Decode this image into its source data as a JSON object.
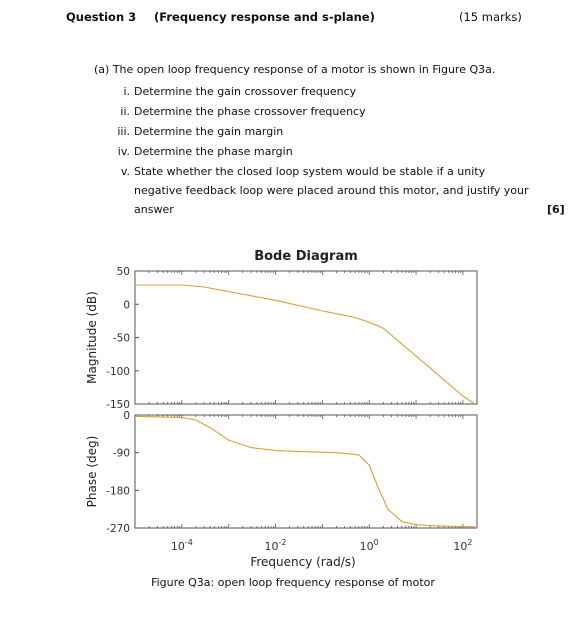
{
  "header": {
    "question": "Question 3",
    "topic": "(Frequency response and s-plane)",
    "marks": "(15 marks)"
  },
  "part_a": {
    "intro": "(a) The open loop frequency response of a motor is shown in Figure Q3a.",
    "items": [
      {
        "num": "i.",
        "text": "Determine the gain crossover frequency"
      },
      {
        "num": "ii.",
        "text": "Determine the phase crossover frequency"
      },
      {
        "num": "iii.",
        "text": "Determine the gain margin"
      },
      {
        "num": "iv.",
        "text": "Determine the phase margin"
      },
      {
        "num": "v.",
        "text": "State whether the closed loop system would be stable if a unity negative feedback loop were placed around this motor, and justify your answer"
      }
    ],
    "marks": "[6]"
  },
  "figure": {
    "caption": "Figure Q3a: open loop frequency response of motor"
  },
  "colors": {
    "curve": "#d9a040",
    "axis": "#555555"
  },
  "chart_data": {
    "type": "line",
    "title": "Bode Diagram",
    "xlabel": "Frequency  (rad/s)",
    "x_scale": "log",
    "xlim": [
      1e-05,
      200
    ],
    "x_ticks": [
      {
        "value": 0.0001,
        "base": "10",
        "exp": "-4"
      },
      {
        "value": 0.01,
        "base": "10",
        "exp": "-2"
      },
      {
        "value": 1,
        "base": "10",
        "exp": "0"
      },
      {
        "value": 100,
        "base": "10",
        "exp": "2"
      }
    ],
    "magnitude": {
      "ylabel": "Magnitude (dB)",
      "ylim": [
        -150,
        50
      ],
      "yticks": [
        "50",
        "0",
        "-50",
        "-100",
        "-150"
      ],
      "ytick_values": [
        50,
        0,
        -50,
        -100,
        -150
      ],
      "x": [
        1e-05,
        0.0001,
        0.0003,
        0.001,
        0.01,
        0.1,
        0.5,
        1,
        2,
        10,
        100,
        180
      ],
      "y": [
        29,
        29,
        26,
        19,
        6,
        -10,
        -20,
        -27,
        -36,
        -78,
        -138,
        -150
      ]
    },
    "phase": {
      "ylabel": "Phase (deg)",
      "ylim": [
        -270,
        0
      ],
      "yticks": [
        "0",
        "-90",
        "-180",
        "-270"
      ],
      "ytick_values": [
        0,
        -90,
        -180,
        -270
      ],
      "x": [
        1e-05,
        0.0001,
        0.0002,
        0.0004,
        0.001,
        0.003,
        0.01,
        0.05,
        0.2,
        0.6,
        1,
        1.5,
        2.5,
        5,
        10,
        30,
        100,
        180
      ],
      "y": [
        -3,
        -6,
        -12,
        -30,
        -60,
        -78,
        -85,
        -88,
        -90,
        -95,
        -120,
        -170,
        -225,
        -255,
        -262,
        -265,
        -267,
        -267
      ]
    }
  }
}
